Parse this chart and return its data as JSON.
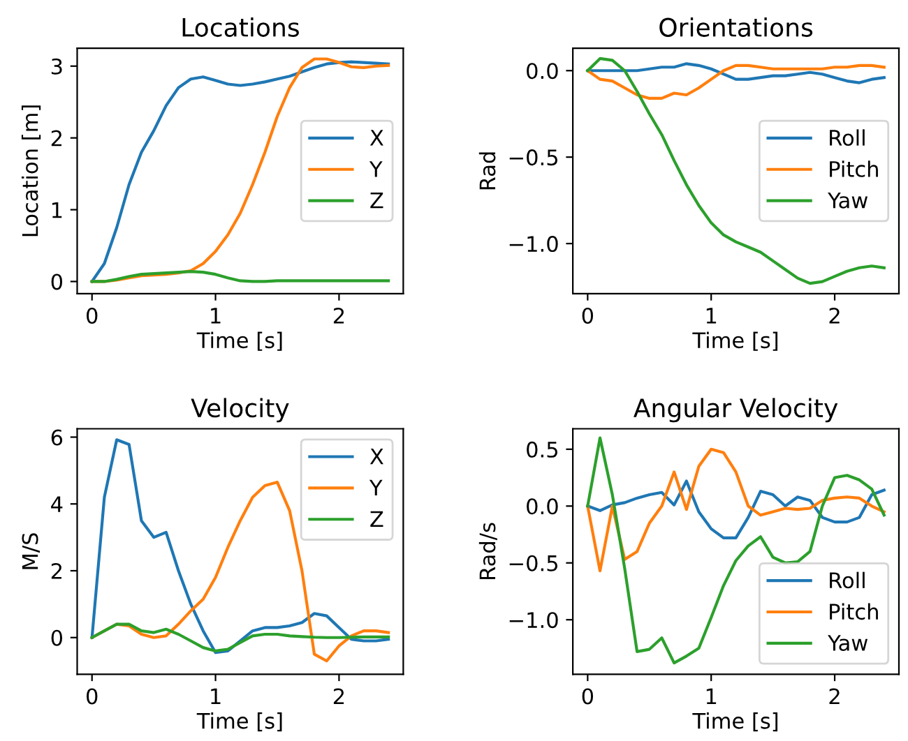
{
  "chart_data": [
    {
      "type": "line",
      "title": "Locations",
      "xlabel": "Time [s]",
      "ylabel": "Location [m]",
      "x": [
        0,
        0.1,
        0.2,
        0.3,
        0.4,
        0.5,
        0.6,
        0.7,
        0.8,
        0.9,
        1.0,
        1.1,
        1.2,
        1.3,
        1.4,
        1.5,
        1.6,
        1.7,
        1.8,
        1.9,
        2.0,
        2.1,
        2.2,
        2.3,
        2.4
      ],
      "xlim": [
        -0.12,
        2.52
      ],
      "xticks": [
        0,
        1,
        2
      ],
      "ylim": [
        -0.17,
        3.25
      ],
      "yticks": [
        0,
        1,
        2,
        3
      ],
      "grid": false,
      "legend": "right",
      "series": [
        {
          "name": "X",
          "color": "#1f77b4",
          "values": [
            0,
            0.25,
            0.75,
            1.35,
            1.8,
            2.1,
            2.45,
            2.7,
            2.82,
            2.85,
            2.8,
            2.75,
            2.73,
            2.75,
            2.78,
            2.82,
            2.86,
            2.92,
            2.98,
            3.03,
            3.05,
            3.06,
            3.05,
            3.04,
            3.03
          ]
        },
        {
          "name": "Y",
          "color": "#ff7f0e",
          "values": [
            0,
            0,
            0.02,
            0.05,
            0.08,
            0.09,
            0.1,
            0.12,
            0.15,
            0.25,
            0.42,
            0.65,
            0.95,
            1.35,
            1.8,
            2.3,
            2.7,
            2.98,
            3.1,
            3.1,
            3.05,
            2.99,
            2.98,
            3.0,
            3.01
          ]
        },
        {
          "name": "Z",
          "color": "#2ca02c",
          "values": [
            0,
            0,
            0.03,
            0.07,
            0.1,
            0.11,
            0.12,
            0.13,
            0.14,
            0.13,
            0.1,
            0.05,
            0.01,
            0,
            0,
            0.01,
            0.01,
            0.01,
            0.01,
            0.01,
            0.01,
            0.01,
            0.01,
            0.01,
            0.01
          ]
        }
      ]
    },
    {
      "type": "line",
      "title": "Orientations",
      "xlabel": "Time [s]",
      "ylabel": "Rad",
      "x": [
        0,
        0.1,
        0.2,
        0.3,
        0.4,
        0.5,
        0.6,
        0.7,
        0.8,
        0.9,
        1.0,
        1.1,
        1.2,
        1.3,
        1.4,
        1.5,
        1.6,
        1.7,
        1.8,
        1.9,
        2.0,
        2.1,
        2.2,
        2.3,
        2.4
      ],
      "xlim": [
        -0.12,
        2.52
      ],
      "xticks": [
        0,
        1,
        2
      ],
      "ylim": [
        -1.29,
        0.13
      ],
      "yticks": [
        {
          "value": 0,
          "label": "0.0"
        },
        {
          "value": -0.5,
          "label": "−0.5"
        },
        {
          "value": -1,
          "label": "−1.0"
        }
      ],
      "grid": false,
      "legend": "right",
      "series": [
        {
          "name": "Roll",
          "color": "#1f77b4",
          "values": [
            0,
            0,
            0,
            0,
            0,
            0.01,
            0.02,
            0.02,
            0.04,
            0.03,
            0.01,
            -0.02,
            -0.05,
            -0.05,
            -0.04,
            -0.03,
            -0.03,
            -0.02,
            -0.01,
            -0.02,
            -0.04,
            -0.06,
            -0.07,
            -0.05,
            -0.04
          ]
        },
        {
          "name": "Pitch",
          "color": "#ff7f0e",
          "values": [
            0,
            -0.05,
            -0.06,
            -0.1,
            -0.14,
            -0.16,
            -0.16,
            -0.13,
            -0.14,
            -0.1,
            -0.05,
            0,
            0.03,
            0.03,
            0.02,
            0.01,
            0.01,
            0.01,
            0.01,
            0.01,
            0.02,
            0.02,
            0.03,
            0.03,
            0.02
          ]
        },
        {
          "name": "Yaw",
          "color": "#2ca02c",
          "values": [
            0,
            0.07,
            0.06,
            0.0,
            -0.12,
            -0.25,
            -0.37,
            -0.52,
            -0.66,
            -0.78,
            -0.88,
            -0.95,
            -0.99,
            -1.02,
            -1.05,
            -1.1,
            -1.15,
            -1.2,
            -1.23,
            -1.22,
            -1.19,
            -1.16,
            -1.14,
            -1.13,
            -1.14
          ]
        }
      ]
    },
    {
      "type": "line",
      "title": "Velocity",
      "xlabel": "Time [s]",
      "ylabel": "M/S",
      "x": [
        0,
        0.1,
        0.2,
        0.3,
        0.4,
        0.5,
        0.6,
        0.7,
        0.8,
        0.9,
        1.0,
        1.1,
        1.2,
        1.3,
        1.4,
        1.5,
        1.6,
        1.7,
        1.8,
        1.9,
        2.0,
        2.1,
        2.2,
        2.3,
        2.4
      ],
      "xlim": [
        -0.12,
        2.52
      ],
      "xticks": [
        0,
        1,
        2
      ],
      "ylim": [
        -1.1,
        6.25
      ],
      "yticks": [
        0,
        2,
        4,
        6
      ],
      "grid": false,
      "legend": "upper right",
      "series": [
        {
          "name": "X",
          "color": "#1f77b4",
          "values": [
            0,
            4.2,
            5.92,
            5.78,
            3.5,
            3.0,
            3.15,
            2.0,
            1.0,
            0.2,
            -0.45,
            -0.4,
            -0.1,
            0.2,
            0.3,
            0.3,
            0.35,
            0.45,
            0.72,
            0.65,
            0.3,
            -0.05,
            -0.1,
            -0.1,
            -0.05
          ]
        },
        {
          "name": "Y",
          "color": "#ff7f0e",
          "values": [
            0,
            0.2,
            0.4,
            0.35,
            0.1,
            0,
            0.05,
            0.4,
            0.8,
            1.15,
            1.8,
            2.7,
            3.5,
            4.2,
            4.55,
            4.65,
            3.8,
            2.0,
            -0.5,
            -0.7,
            -0.25,
            0.05,
            0.2,
            0.2,
            0.15
          ]
        },
        {
          "name": "Z",
          "color": "#2ca02c",
          "values": [
            0,
            0.2,
            0.4,
            0.4,
            0.2,
            0.15,
            0.25,
            0.1,
            -0.1,
            -0.3,
            -0.4,
            -0.35,
            -0.15,
            0.05,
            0.1,
            0.1,
            0.05,
            0.03,
            0.01,
            0,
            0,
            0.01,
            0.02,
            0.02,
            0.02
          ]
        }
      ]
    },
    {
      "type": "line",
      "title": "Angular Velocity",
      "xlabel": "Time [s]",
      "ylabel": "Rad/s",
      "x": [
        0,
        0.1,
        0.2,
        0.3,
        0.4,
        0.5,
        0.6,
        0.7,
        0.8,
        0.9,
        1.0,
        1.1,
        1.2,
        1.3,
        1.4,
        1.5,
        1.6,
        1.7,
        1.8,
        1.9,
        2.0,
        2.1,
        2.2,
        2.3,
        2.4
      ],
      "xlim": [
        -0.12,
        2.52
      ],
      "xticks": [
        0,
        1,
        2
      ],
      "ylim": [
        -1.48,
        0.68
      ],
      "yticks": [
        {
          "value": 0.5,
          "label": "0.5"
        },
        {
          "value": 0,
          "label": "0.0"
        },
        {
          "value": -0.5,
          "label": "−0.5"
        },
        {
          "value": -1,
          "label": "−1.0"
        }
      ],
      "grid": false,
      "legend": "lower right",
      "series": [
        {
          "name": "Roll",
          "color": "#1f77b4",
          "values": [
            0,
            -0.04,
            0.01,
            0.03,
            0.07,
            0.1,
            0.12,
            0.01,
            0.22,
            -0.05,
            -0.2,
            -0.28,
            -0.28,
            -0.1,
            0.13,
            0.1,
            0.0,
            0.08,
            0.05,
            -0.1,
            -0.14,
            -0.14,
            -0.1,
            0.1,
            0.14
          ]
        },
        {
          "name": "Pitch",
          "color": "#ff7f0e",
          "values": [
            0,
            -0.57,
            0.0,
            -0.47,
            -0.4,
            -0.15,
            0.0,
            0.3,
            -0.03,
            0.35,
            0.5,
            0.47,
            0.3,
            0.0,
            -0.08,
            -0.05,
            -0.02,
            -0.03,
            -0.02,
            0.05,
            0.07,
            0.08,
            0.07,
            0.0,
            -0.05
          ]
        },
        {
          "name": "Yaw",
          "color": "#2ca02c",
          "values": [
            0,
            0.6,
            0.1,
            -0.55,
            -1.28,
            -1.26,
            -1.16,
            -1.38,
            -1.32,
            -1.25,
            -0.98,
            -0.7,
            -0.48,
            -0.35,
            -0.27,
            -0.45,
            -0.5,
            -0.49,
            -0.4,
            0.0,
            0.25,
            0.27,
            0.23,
            0.15,
            -0.08
          ]
        }
      ]
    }
  ]
}
